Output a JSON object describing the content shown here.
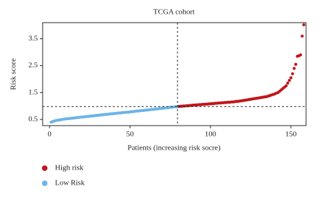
{
  "chart_data": {
    "type": "scatter",
    "title": "TCGA cohort",
    "x_label": "Patients (increasing risk socre)",
    "y_label": "Risk score",
    "xlim": [
      -4.3,
      159.4
    ],
    "ylim": [
      0.27,
      4.1
    ],
    "xticks": [
      0,
      50,
      100,
      150
    ],
    "yticks": [
      0.5,
      1.5,
      2.5,
      3.5
    ],
    "hline": 0.98,
    "vline": 79.5,
    "series": [
      {
        "name": "High risk",
        "color": "#c0161b",
        "x": [
          80,
          81,
          82,
          83,
          84,
          85,
          86,
          87,
          88,
          89,
          90,
          91,
          92,
          93,
          94,
          95,
          96,
          97,
          98,
          99,
          100,
          101,
          102,
          103,
          104,
          105,
          106,
          107,
          108,
          109,
          110,
          111,
          112,
          113,
          114,
          115,
          116,
          117,
          118,
          119,
          120,
          121,
          122,
          123,
          124,
          125,
          126,
          127,
          128,
          129,
          130,
          131,
          132,
          133,
          134,
          135,
          136,
          137,
          138,
          139,
          140,
          141,
          142,
          143,
          144,
          145,
          146,
          147,
          148,
          149,
          150,
          151,
          152,
          153,
          154,
          155,
          156,
          157,
          158
        ],
        "values": [
          0.98,
          0.99,
          0.99,
          1.0,
          1.0,
          1.01,
          1.01,
          1.02,
          1.02,
          1.03,
          1.03,
          1.04,
          1.04,
          1.05,
          1.05,
          1.06,
          1.06,
          1.07,
          1.07,
          1.08,
          1.08,
          1.09,
          1.09,
          1.1,
          1.1,
          1.11,
          1.11,
          1.12,
          1.12,
          1.13,
          1.13,
          1.14,
          1.14,
          1.15,
          1.15,
          1.16,
          1.17,
          1.17,
          1.18,
          1.19,
          1.2,
          1.21,
          1.22,
          1.23,
          1.24,
          1.25,
          1.26,
          1.27,
          1.28,
          1.29,
          1.3,
          1.31,
          1.32,
          1.33,
          1.34,
          1.35,
          1.37,
          1.39,
          1.41,
          1.43,
          1.45,
          1.48,
          1.5,
          1.55,
          1.6,
          1.65,
          1.7,
          1.75,
          1.85,
          1.95,
          2.05,
          2.2,
          2.4,
          2.55,
          2.85,
          2.87,
          2.9,
          3.6,
          4.02
        ]
      },
      {
        "name": "Low Risk",
        "color": "#6cb4e6",
        "x": [
          1,
          2,
          3,
          4,
          5,
          6,
          7,
          8,
          9,
          10,
          11,
          12,
          13,
          14,
          15,
          16,
          17,
          18,
          19,
          20,
          21,
          22,
          23,
          24,
          25,
          26,
          27,
          28,
          29,
          30,
          31,
          32,
          33,
          34,
          35,
          36,
          37,
          38,
          39,
          40,
          41,
          42,
          43,
          44,
          45,
          46,
          47,
          48,
          49,
          50,
          51,
          52,
          53,
          54,
          55,
          56,
          57,
          58,
          59,
          60,
          61,
          62,
          63,
          64,
          65,
          66,
          67,
          68,
          69,
          70,
          71,
          72,
          73,
          74,
          75,
          76,
          77,
          78,
          79
        ],
        "values": [
          0.4,
          0.42,
          0.44,
          0.46,
          0.47,
          0.48,
          0.49,
          0.5,
          0.51,
          0.52,
          0.53,
          0.53,
          0.54,
          0.55,
          0.55,
          0.56,
          0.57,
          0.57,
          0.58,
          0.59,
          0.59,
          0.6,
          0.61,
          0.61,
          0.62,
          0.63,
          0.63,
          0.64,
          0.65,
          0.65,
          0.66,
          0.67,
          0.67,
          0.68,
          0.69,
          0.69,
          0.7,
          0.71,
          0.71,
          0.72,
          0.72,
          0.73,
          0.74,
          0.74,
          0.75,
          0.76,
          0.76,
          0.77,
          0.77,
          0.78,
          0.79,
          0.79,
          0.8,
          0.81,
          0.81,
          0.82,
          0.83,
          0.83,
          0.84,
          0.85,
          0.85,
          0.86,
          0.87,
          0.87,
          0.88,
          0.89,
          0.89,
          0.9,
          0.91,
          0.91,
          0.92,
          0.93,
          0.93,
          0.94,
          0.95,
          0.95,
          0.96,
          0.97,
          0.97
        ]
      }
    ]
  }
}
